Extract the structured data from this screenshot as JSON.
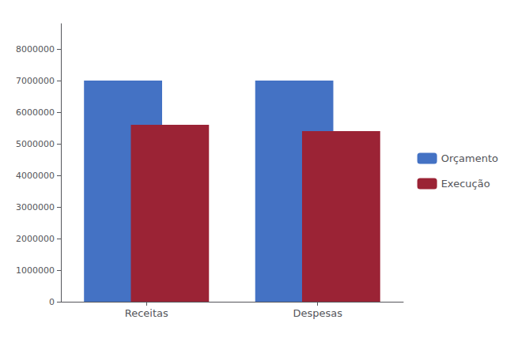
{
  "chart_data": {
    "type": "bar",
    "categories": [
      "Receitas",
      "Despesas"
    ],
    "series": [
      {
        "name": "Orçamento",
        "color": "#4472C4",
        "values": [
          7000000,
          7000000
        ]
      },
      {
        "name": "Execução",
        "color": "#9B2335",
        "values": [
          5600000,
          5400000
        ]
      }
    ],
    "ylim": [
      0,
      8800000
    ],
    "yticks": [
      0,
      1000000,
      2000000,
      3000000,
      4000000,
      5000000,
      6000000,
      7000000,
      8000000
    ],
    "grid": false,
    "legend": "right"
  }
}
